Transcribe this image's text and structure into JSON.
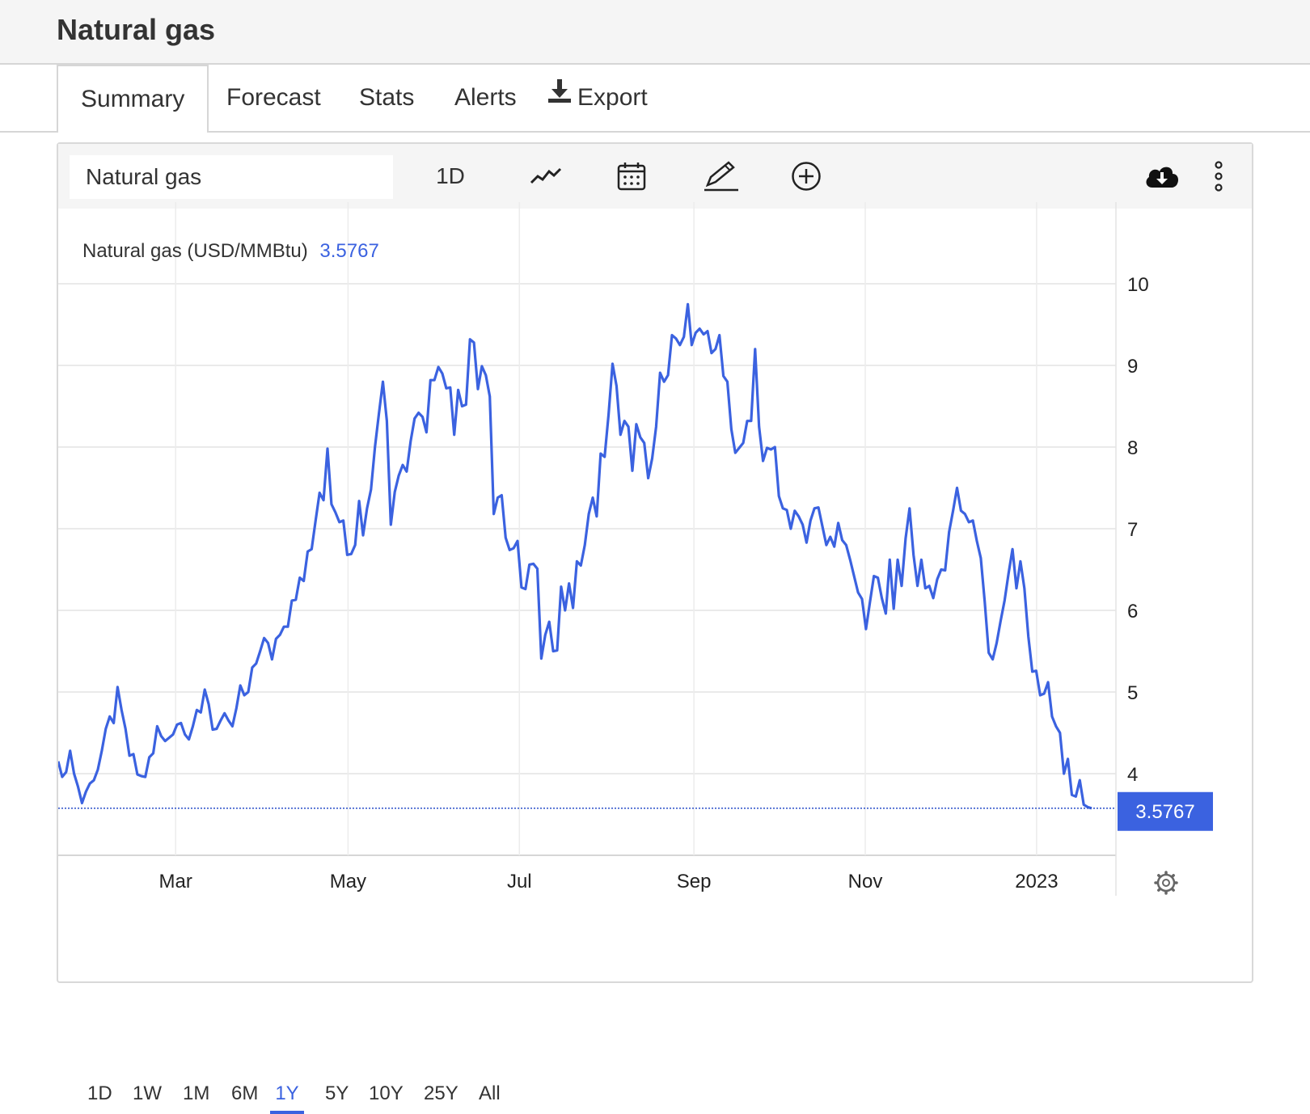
{
  "page": {
    "title": "Natural gas"
  },
  "tabs": [
    {
      "label": "Summary",
      "active": true
    },
    {
      "label": "Forecast"
    },
    {
      "label": "Stats"
    },
    {
      "label": "Alerts"
    },
    {
      "label": "Export",
      "icon": "download-icon"
    }
  ],
  "toolbar": {
    "symbol": "Natural gas",
    "interval": "1D",
    "icons": [
      "chart-type-icon",
      "calendar-icon",
      "pencil-icon",
      "add-compare-icon",
      "cloud-download-icon",
      "more-vertical-icon"
    ]
  },
  "chart_data": {
    "type": "line",
    "legend_label": "Natural gas (USD/MMBtu)",
    "last_value_label": "3.5767",
    "last_value": 3.5767,
    "ylim": [
      3.0,
      11.0
    ],
    "y_ticks": [
      4,
      5,
      6,
      7,
      8,
      9,
      10
    ],
    "x_ticks": [
      {
        "label": "Mar",
        "t": 0.111
      },
      {
        "label": "May",
        "t": 0.274
      },
      {
        "label": "Jul",
        "t": 0.436
      },
      {
        "label": "Sep",
        "t": 0.601
      },
      {
        "label": "Nov",
        "t": 0.763
      },
      {
        "label": "2023",
        "t": 0.925
      }
    ],
    "grid": true,
    "line_color": "#3b62e0",
    "series": [
      {
        "values": [
          4.15,
          3.96,
          4.02,
          4.28,
          4.0,
          3.84,
          3.64,
          3.78,
          3.88,
          3.92,
          4.05,
          4.28,
          4.55,
          4.7,
          4.62,
          5.06,
          4.78,
          4.55,
          4.22,
          4.24,
          3.99,
          3.97,
          3.96,
          4.2,
          4.25,
          4.58,
          4.46,
          4.4,
          4.44,
          4.48,
          4.6,
          4.62,
          4.48,
          4.42,
          4.58,
          4.78,
          4.75,
          5.03,
          4.85,
          4.54,
          4.55,
          4.65,
          4.74,
          4.65,
          4.58,
          4.8,
          5.08,
          4.96,
          5.0,
          5.3,
          5.35,
          5.5,
          5.66,
          5.6,
          5.4,
          5.65,
          5.7,
          5.8,
          5.8,
          6.12,
          6.13,
          6.4,
          6.36,
          6.72,
          6.75,
          7.1,
          7.44,
          7.35,
          7.98,
          7.3,
          7.2,
          7.08,
          7.1,
          6.68,
          6.69,
          6.8,
          7.34,
          6.92,
          7.25,
          7.48,
          8.0,
          8.41,
          8.8,
          8.32,
          7.05,
          7.45,
          7.65,
          7.78,
          7.7,
          8.07,
          8.35,
          8.42,
          8.37,
          8.18,
          8.82,
          8.82,
          8.98,
          8.9,
          8.72,
          8.73,
          8.15,
          8.7,
          8.5,
          8.52,
          9.32,
          9.28,
          8.71,
          8.99,
          8.88,
          8.62,
          7.18,
          7.38,
          7.41,
          6.89,
          6.74,
          6.76,
          6.85,
          6.28,
          6.26,
          6.56,
          6.57,
          6.51,
          5.41,
          5.7,
          5.86,
          5.5,
          5.51,
          6.29,
          6.0,
          6.33,
          6.03,
          6.6,
          6.55,
          6.8,
          7.18,
          7.38,
          7.15,
          7.92,
          7.88,
          8.4,
          9.02,
          8.75,
          8.15,
          8.32,
          8.25,
          7.71,
          8.28,
          8.12,
          8.05,
          7.62,
          7.86,
          8.25,
          8.91,
          8.8,
          8.88,
          9.37,
          9.33,
          9.25,
          9.35,
          9.75,
          9.25,
          9.4,
          9.45,
          9.38,
          9.42,
          9.15,
          9.2,
          9.37,
          8.87,
          8.8,
          8.22,
          7.93,
          7.99,
          8.05,
          8.32,
          8.32,
          9.2,
          8.25,
          7.83,
          7.99,
          7.97,
          8.0,
          7.4,
          7.25,
          7.23,
          7.0,
          7.22,
          7.15,
          7.05,
          6.83,
          7.1,
          7.25,
          7.26,
          7.03,
          6.8,
          6.9,
          6.78,
          7.07,
          6.86,
          6.8,
          6.62,
          6.42,
          6.22,
          6.14,
          5.77,
          6.1,
          6.42,
          6.4,
          6.15,
          5.96,
          6.62,
          6.02,
          6.62,
          6.3,
          6.88,
          7.25,
          6.68,
          6.3,
          6.62,
          6.27,
          6.3,
          6.15,
          6.38,
          6.5,
          6.49,
          6.96,
          7.22,
          7.5,
          7.22,
          7.18,
          7.08,
          7.1,
          6.85,
          6.64,
          6.1,
          5.48,
          5.4,
          5.6,
          5.87,
          6.12,
          6.45,
          6.75,
          6.27,
          6.6,
          6.27,
          5.68,
          5.25,
          5.26,
          4.96,
          4.98,
          5.12,
          4.7,
          4.58,
          4.5,
          4.0,
          4.18,
          3.74,
          3.72,
          3.92,
          3.62,
          3.59,
          3.5767
        ]
      }
    ]
  },
  "range_buttons": [
    {
      "label": "1D"
    },
    {
      "label": "1W"
    },
    {
      "label": "1M"
    },
    {
      "label": "6M"
    },
    {
      "label": "1Y",
      "active": true
    },
    {
      "label": "5Y"
    },
    {
      "label": "10Y"
    },
    {
      "label": "25Y"
    },
    {
      "label": "All"
    }
  ]
}
